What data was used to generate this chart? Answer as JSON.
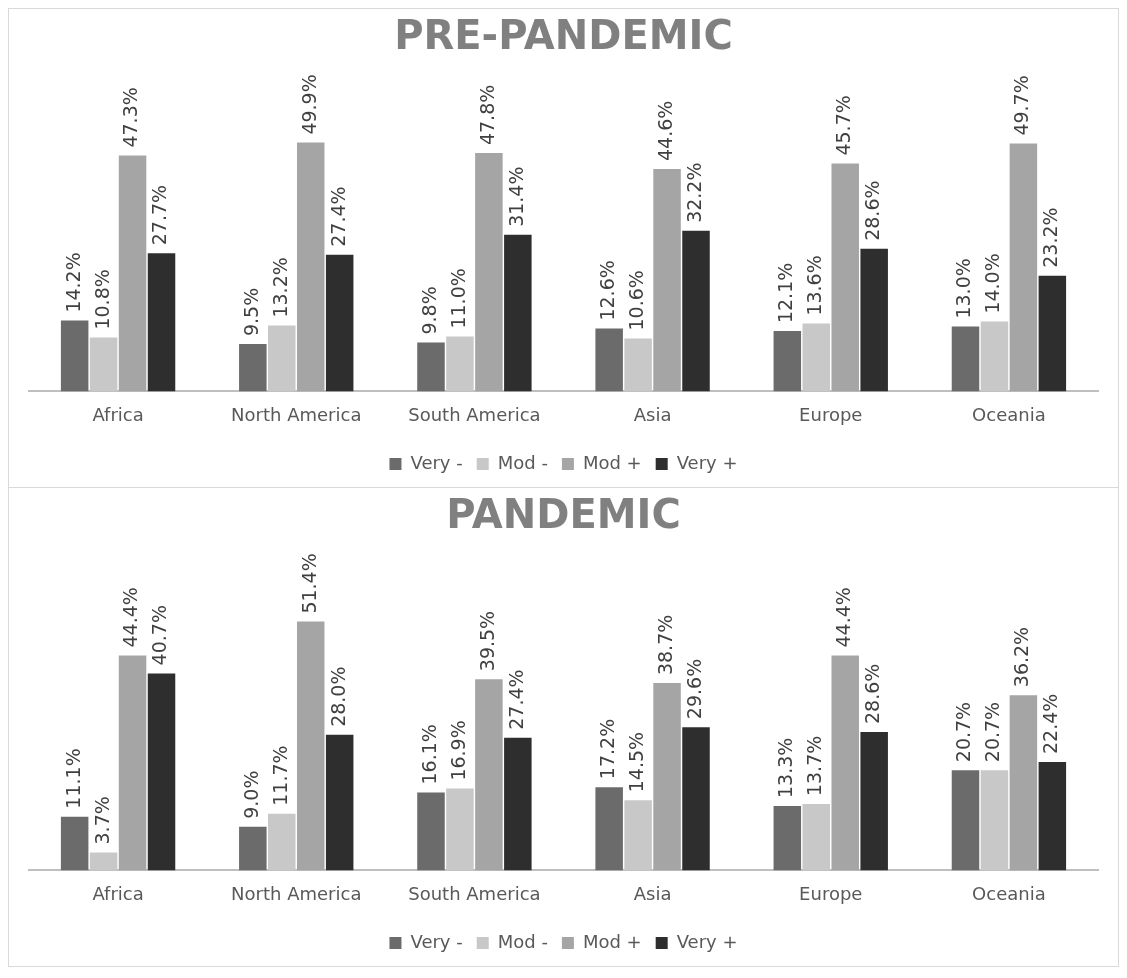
{
  "chart_data": [
    {
      "type": "bar",
      "title": "PRE-PANDEMIC",
      "categories": [
        "Africa",
        "North America",
        "South America",
        "Asia",
        "Europe",
        "Oceania"
      ],
      "legend": "bottom",
      "tick_labels": "x",
      "series": [
        {
          "name": "Very -",
          "color": "#6b6b6b",
          "values": [
            14.2,
            9.5,
            9.8,
            12.6,
            12.1,
            13.0
          ],
          "value_labels": [
            "14.2%",
            "9.5%",
            "9.8%",
            "12.6%",
            "12.1%",
            "13.0%"
          ]
        },
        {
          "name": "Mod -",
          "color": "#c8c8c8",
          "values": [
            10.8,
            13.2,
            11.0,
            10.6,
            13.6,
            14.0
          ],
          "value_labels": [
            "10.8%",
            "13.2%",
            "11.0%",
            "10.6%",
            "13.6%",
            "14.0%"
          ]
        },
        {
          "name": "Mod +",
          "color": "#a5a5a5",
          "values": [
            47.3,
            49.9,
            47.8,
            44.6,
            45.7,
            49.7
          ],
          "value_labels": [
            "47.3%",
            "49.9%",
            "47.8%",
            "44.6%",
            "45.7%",
            "49.7%"
          ]
        },
        {
          "name": "Very +",
          "color": "#2e2e2e",
          "values": [
            27.7,
            27.4,
            31.4,
            32.2,
            28.6,
            23.2
          ],
          "value_labels": [
            "27.7%",
            "27.4%",
            "31.4%",
            "32.2%",
            "28.6%",
            "23.2%"
          ]
        }
      ]
    },
    {
      "type": "bar",
      "title": "PANDEMIC",
      "categories": [
        "Africa",
        "North America",
        "South America",
        "Asia",
        "Europe",
        "Oceania"
      ],
      "legend": "bottom",
      "tick_labels": "x",
      "series": [
        {
          "name": "Very -",
          "color": "#6b6b6b",
          "values": [
            11.1,
            9.0,
            16.1,
            17.2,
            13.3,
            20.7
          ],
          "value_labels": [
            "11.1%",
            "9.0%",
            "16.1%",
            "17.2%",
            "13.3%",
            "20.7%"
          ]
        },
        {
          "name": "Mod -",
          "color": "#c8c8c8",
          "values": [
            3.7,
            11.7,
            16.9,
            14.5,
            13.7,
            20.7
          ],
          "value_labels": [
            "3.7%",
            "11.7%",
            "16.9%",
            "14.5%",
            "13.7%",
            "20.7%"
          ]
        },
        {
          "name": "Mod +",
          "color": "#a5a5a5",
          "values": [
            44.4,
            51.4,
            39.5,
            38.7,
            44.4,
            36.2
          ],
          "value_labels": [
            "44.4%",
            "51.4%",
            "39.5%",
            "38.7%",
            "44.4%",
            "36.2%"
          ]
        },
        {
          "name": "Very +",
          "color": "#2e2e2e",
          "values": [
            40.7,
            28.0,
            27.4,
            29.6,
            28.6,
            22.4
          ],
          "value_labels": [
            "40.7%",
            "28.0%",
            "27.4%",
            "29.6%",
            "28.6%",
            "22.4%"
          ]
        }
      ]
    }
  ]
}
